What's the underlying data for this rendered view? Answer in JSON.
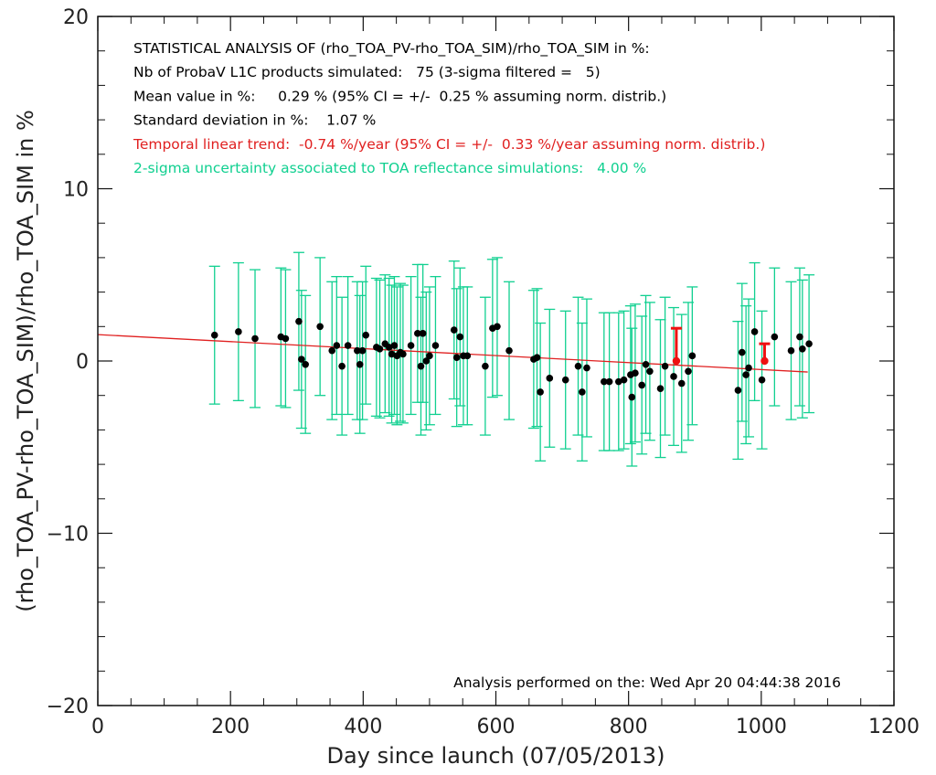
{
  "chart_data": {
    "type": "scatter",
    "title": "",
    "xlabel": "Day since launch (07/05/2013)",
    "ylabel": "(rho_TOA_PV-rho_TOA_SIM)/rho_TOA_SIM in %",
    "xlim": [
      0,
      1200
    ],
    "ylim": [
      -20,
      20
    ],
    "x_ticks": [
      0,
      200,
      400,
      600,
      800,
      1000,
      1200
    ],
    "y_ticks": [
      -20,
      -10,
      0,
      10,
      20
    ],
    "grid": false,
    "uncertainty_halfwidth": 4.0,
    "trend_line": {
      "x": [
        0,
        1070
      ],
      "y": [
        1.53,
        -0.64
      ]
    },
    "annotations": [
      {
        "text": "STATISTICAL ANALYSIS OF (rho_TOA_PV-rho_TOA_SIM)/rho_TOA_SIM in %:",
        "color": "#000000"
      },
      {
        "text": "Nb of ProbaV L1C products simulated:   75 (3-sigma filtered =   5)",
        "color": "#000000"
      },
      {
        "text": "Mean value in %:     0.29 % (95% CI = +/-  0.25 % assuming norm. distrib.)",
        "color": "#000000"
      },
      {
        "text": "Standard deviation in %:    1.07 %",
        "color": "#000000"
      },
      {
        "text": "Temporal linear trend:  -0.74 %/year (95% CI = +/-  0.33 %/year assuming norm. distrib.)",
        "color": "#e02020"
      },
      {
        "text": "2-sigma uncertainty associated to TOA reflectance simulations:   4.00 %",
        "color": "#10d090"
      }
    ],
    "footer": "Analysis performed on the: Wed Apr 20 04:44:38 2016",
    "series": [
      {
        "x": [
          176,
          212,
          237,
          276,
          283,
          303,
          307,
          313,
          335,
          353,
          360,
          368,
          377,
          391,
          395,
          399,
          404,
          420,
          425,
          433,
          439,
          443,
          447,
          451,
          456,
          460,
          472,
          482,
          487,
          490,
          495,
          500,
          509,
          537,
          541,
          546,
          551,
          557,
          584,
          595,
          602,
          620,
          657,
          662,
          667,
          681,
          705,
          724,
          730,
          737,
          763,
          771,
          785,
          793,
          803,
          805,
          810,
          820,
          826,
          832,
          848,
          855,
          868,
          880,
          890,
          896,
          965,
          971,
          977,
          981,
          990,
          1001,
          1020,
          1045,
          1058,
          1062,
          1072
        ],
        "y": [
          1.5,
          1.7,
          1.3,
          1.4,
          1.3,
          2.3,
          0.1,
          -0.2,
          2.0,
          0.6,
          0.9,
          -0.3,
          0.9,
          0.6,
          -0.2,
          0.6,
          1.5,
          0.8,
          0.7,
          1.0,
          0.8,
          0.4,
          0.9,
          0.3,
          0.5,
          0.4,
          0.9,
          1.6,
          -0.3,
          1.6,
          0.0,
          0.3,
          0.9,
          1.8,
          0.2,
          1.4,
          0.3,
          0.3,
          -0.3,
          1.9,
          2.0,
          0.6,
          0.1,
          0.2,
          -1.8,
          -1.0,
          -1.1,
          -0.3,
          -1.8,
          -0.4,
          -1.2,
          -1.2,
          -1.2,
          -1.1,
          -0.8,
          -2.1,
          -0.7,
          -1.4,
          -0.2,
          -0.6,
          -1.6,
          -0.3,
          -0.9,
          -1.3,
          -0.6,
          0.3,
          -1.7,
          0.5,
          -0.8,
          -0.4,
          1.7,
          -1.1,
          1.4,
          0.6,
          1.4,
          0.7,
          1.0
        ],
        "color": "#000000"
      },
      {
        "name": "",
        "x": [
          872,
          1005
        ],
        "y": [
          0.0,
          0.0
        ],
        "err_plus": [
          1.9,
          1.0
        ],
        "err_minus": [
          0.0,
          0.0
        ],
        "color": "#ee1111"
      }
    ]
  }
}
